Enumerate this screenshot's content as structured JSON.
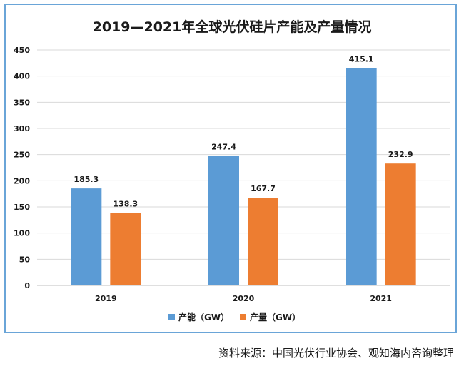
{
  "chart_data": {
    "type": "bar",
    "title": "2019—2021年全球光伏硅片产能及产量情况",
    "categories": [
      "2019",
      "2020",
      "2021"
    ],
    "series": [
      {
        "name": "产能（GW）",
        "values": [
          185.3,
          247.4,
          415.1
        ],
        "color": "#5b9bd5"
      },
      {
        "name": "产量（GW）",
        "values": [
          138.3,
          167.7,
          232.9
        ],
        "color": "#ed7d31"
      }
    ],
    "ylim": [
      0,
      450
    ],
    "yticks": [
      0,
      50,
      100,
      150,
      200,
      250,
      300,
      350,
      400,
      450
    ],
    "grid": true,
    "legend": "bottom-center"
  },
  "source_note": "资料来源：中国光伏行业协会、观知海内咨询整理"
}
